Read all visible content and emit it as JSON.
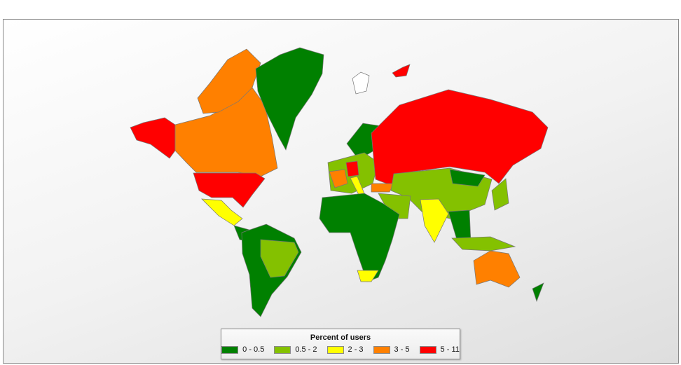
{
  "map_data": {
    "type": "choropleth",
    "legend": {
      "title": "Percent of users",
      "placement": "bottom-center",
      "bins": [
        {
          "label": "0 - 0.5",
          "color": "#008000"
        },
        {
          "label": "0.5 - 2",
          "color": "#84c100"
        },
        {
          "label": "2 - 3",
          "color": "#ffff00"
        },
        {
          "label": "3 - 5",
          "color": "#ff8000"
        },
        {
          "label": "5 - 11",
          "color": "#ff0000"
        }
      ]
    },
    "no_data_color": "#ffffff"
  }
}
